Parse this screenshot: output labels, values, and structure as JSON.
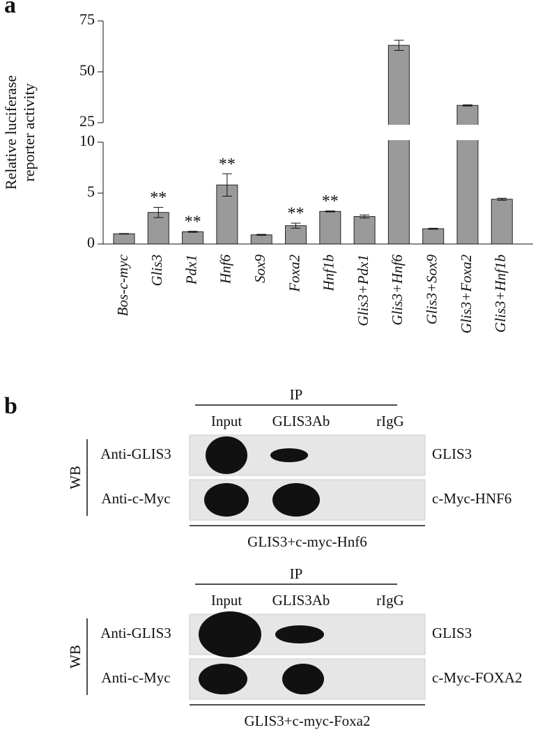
{
  "panel_a": {
    "label": "a",
    "chart_data": {
      "type": "bar",
      "ylabel": [
        "Relative luciferase",
        "reporter activity"
      ],
      "categories": [
        "Bos-c-myc",
        "Glis3",
        "Pdx1",
        "Hnf6",
        "Sox9",
        "Foxa2",
        "Hnf1b",
        "Glis3+Pdx1",
        "Glis3+Hnf6",
        "Glis3+Sox9",
        "Glis3+Foxa2",
        "Glis3+Hnf1b"
      ],
      "values": [
        1.0,
        3.1,
        1.2,
        5.8,
        0.9,
        1.8,
        3.2,
        2.7,
        63,
        1.5,
        33.5,
        4.4
      ],
      "errors": [
        0.03,
        0.5,
        0.05,
        1.1,
        0.05,
        0.25,
        0.05,
        0.15,
        2.5,
        0.05,
        0.3,
        0.1
      ],
      "significance": [
        null,
        "**",
        "**",
        "**",
        null,
        "**",
        "**",
        null,
        null,
        null,
        null,
        null
      ],
      "color": "#9a9a9a",
      "ylim": [
        0,
        75
      ],
      "axis_break": [
        10,
        25
      ],
      "yticks": [
        0,
        5,
        10,
        25,
        50,
        75
      ]
    }
  },
  "panel_b": {
    "label": "b",
    "blots": [
      {
        "ip_label": "IP",
        "columns": [
          "Input",
          "GLIS3Ab",
          "rIgG"
        ],
        "wb_label": "WB",
        "rows": [
          {
            "antibody": "Anti-GLIS3",
            "protein": "GLIS3"
          },
          {
            "antibody": "Anti-c-Myc",
            "protein": "c-Myc-HNF6"
          }
        ],
        "caption": "GLIS3+c-myc-Hnf6"
      },
      {
        "ip_label": "IP",
        "columns": [
          "Input",
          "GLIS3Ab",
          "rIgG"
        ],
        "wb_label": "WB",
        "rows": [
          {
            "antibody": "Anti-GLIS3",
            "protein": "GLIS3"
          },
          {
            "antibody": "Anti-c-Myc",
            "protein": "c-Myc-FOXA2"
          }
        ],
        "caption": "GLIS3+c-myc-Foxa2"
      }
    ]
  }
}
